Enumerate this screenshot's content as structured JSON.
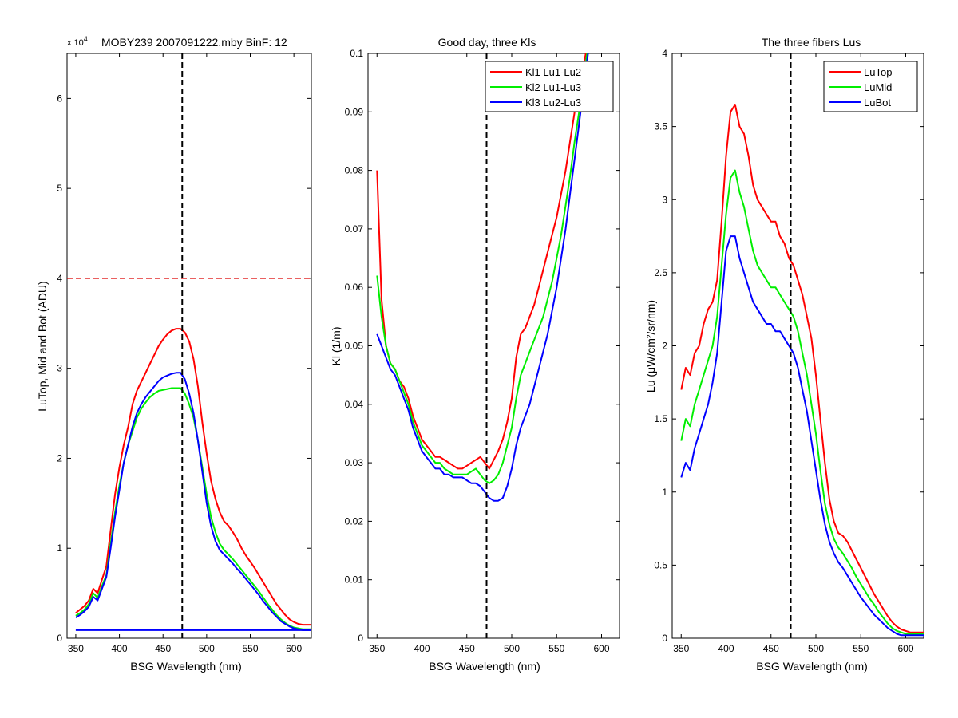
{
  "figure": {
    "panel1": {
      "title": "MOBY239  2007091222.mby BinF: 12",
      "exponent_base": "x 10",
      "exponent_power": "4"
    },
    "panel2": {
      "title": "Good day, three Kls"
    },
    "panel3": {
      "title": "The three fibers Lus"
    }
  },
  "colors": {
    "red": "#ff0000",
    "green": "#00ee00",
    "blue": "#0000ff",
    "marker": "#000000",
    "threshold": "#dd0000"
  },
  "chart_data": [
    {
      "type": "line",
      "title": "MOBY239  2007091222.mby BinF: 12",
      "xlabel": "BSG Wavelength (nm)",
      "ylabel": "LuTop, Mid and Bot (ADU)",
      "y_multiplier": "x 10^4",
      "xlim": [
        340,
        620
      ],
      "ylim": [
        0,
        6.5
      ],
      "xticks": [
        350,
        400,
        450,
        500,
        550,
        600
      ],
      "yticks": [
        0,
        1,
        2,
        3,
        4,
        5,
        6
      ],
      "grid": false,
      "legend": null,
      "reference_lines": {
        "vertical_x": 472,
        "horizontal_y": 4.0
      },
      "x": [
        350,
        355,
        360,
        365,
        370,
        375,
        380,
        385,
        390,
        395,
        400,
        405,
        410,
        415,
        420,
        425,
        430,
        435,
        440,
        445,
        450,
        455,
        460,
        465,
        470,
        475,
        480,
        485,
        490,
        495,
        500,
        505,
        510,
        515,
        520,
        525,
        530,
        535,
        540,
        545,
        550,
        555,
        560,
        565,
        570,
        575,
        580,
        585,
        590,
        595,
        600,
        605,
        610,
        615,
        620
      ],
      "series": [
        {
          "name": "",
          "color": "red",
          "values": [
            0.28,
            0.32,
            0.36,
            0.42,
            0.55,
            0.5,
            0.65,
            0.8,
            1.2,
            1.6,
            1.9,
            2.15,
            2.35,
            2.6,
            2.75,
            2.85,
            2.95,
            3.05,
            3.15,
            3.25,
            3.32,
            3.38,
            3.42,
            3.44,
            3.44,
            3.4,
            3.3,
            3.1,
            2.8,
            2.4,
            2.05,
            1.75,
            1.55,
            1.4,
            1.3,
            1.25,
            1.18,
            1.1,
            1.0,
            0.92,
            0.85,
            0.78,
            0.7,
            0.62,
            0.54,
            0.46,
            0.38,
            0.32,
            0.26,
            0.21,
            0.18,
            0.16,
            0.15,
            0.15,
            0.15
          ]
        },
        {
          "name": "",
          "color": "green",
          "values": [
            0.25,
            0.28,
            0.32,
            0.38,
            0.5,
            0.45,
            0.58,
            0.7,
            1.05,
            1.4,
            1.7,
            1.95,
            2.15,
            2.3,
            2.45,
            2.55,
            2.62,
            2.68,
            2.72,
            2.75,
            2.76,
            2.77,
            2.78,
            2.78,
            2.78,
            2.72,
            2.6,
            2.45,
            2.2,
            1.9,
            1.6,
            1.35,
            1.18,
            1.05,
            0.98,
            0.93,
            0.88,
            0.82,
            0.76,
            0.7,
            0.64,
            0.58,
            0.52,
            0.45,
            0.38,
            0.32,
            0.26,
            0.21,
            0.17,
            0.14,
            0.12,
            0.11,
            0.1,
            0.1,
            0.1
          ]
        },
        {
          "name": "",
          "color": "blue",
          "values": [
            0.23,
            0.26,
            0.3,
            0.35,
            0.46,
            0.42,
            0.55,
            0.68,
            1.0,
            1.35,
            1.65,
            1.95,
            2.15,
            2.35,
            2.5,
            2.6,
            2.68,
            2.74,
            2.8,
            2.86,
            2.9,
            2.92,
            2.94,
            2.95,
            2.95,
            2.88,
            2.72,
            2.5,
            2.2,
            1.85,
            1.5,
            1.25,
            1.08,
            0.98,
            0.93,
            0.88,
            0.83,
            0.77,
            0.72,
            0.66,
            0.6,
            0.54,
            0.48,
            0.41,
            0.35,
            0.29,
            0.24,
            0.19,
            0.16,
            0.13,
            0.11,
            0.1,
            0.09,
            0.09,
            0.09
          ]
        },
        {
          "name": "",
          "color": "blue",
          "values": [
            0.09,
            0.09,
            0.09,
            0.09,
            0.09,
            0.09,
            0.09,
            0.09,
            0.09,
            0.09,
            0.09,
            0.09,
            0.09,
            0.09,
            0.09,
            0.09,
            0.09,
            0.09,
            0.09,
            0.09,
            0.09,
            0.09,
            0.09,
            0.09,
            0.09,
            0.09,
            0.09,
            0.09,
            0.09,
            0.09,
            0.09,
            0.09,
            0.09,
            0.09,
            0.09,
            0.09,
            0.09,
            0.09,
            0.09,
            0.09,
            0.09,
            0.09,
            0.09,
            0.09,
            0.09,
            0.09,
            0.09,
            0.09,
            0.09,
            0.09,
            0.09,
            0.09,
            0.09,
            0.09,
            0.09
          ]
        }
      ]
    },
    {
      "type": "line",
      "title": "Good day, three Kls",
      "xlabel": "BSG Wavelength (nm)",
      "ylabel": "Kl (1/m)",
      "xlim": [
        340,
        620
      ],
      "ylim": [
        0,
        0.1
      ],
      "xticks": [
        350,
        400,
        450,
        500,
        550,
        600
      ],
      "yticks": [
        0,
        0.01,
        0.02,
        0.03,
        0.04,
        0.05,
        0.06,
        0.07,
        0.08,
        0.09,
        0.1
      ],
      "grid": false,
      "legend": "top-right",
      "reference_lines": {
        "vertical_x": 472
      },
      "x": [
        350,
        355,
        360,
        365,
        370,
        375,
        380,
        385,
        390,
        395,
        400,
        405,
        410,
        415,
        420,
        425,
        430,
        435,
        440,
        445,
        450,
        455,
        460,
        465,
        470,
        475,
        480,
        485,
        490,
        495,
        500,
        505,
        510,
        515,
        520,
        525,
        530,
        535,
        540,
        545,
        550,
        555,
        560,
        565,
        570,
        575,
        580,
        585
      ],
      "series": [
        {
          "name": "Kl1 Lu1-Lu2",
          "color": "red",
          "values": [
            0.08,
            0.058,
            0.05,
            0.047,
            0.046,
            0.044,
            0.043,
            0.041,
            0.038,
            0.036,
            0.034,
            0.033,
            0.032,
            0.031,
            0.031,
            0.0305,
            0.03,
            0.0295,
            0.029,
            0.029,
            0.0295,
            0.03,
            0.0305,
            0.031,
            0.03,
            0.029,
            0.0305,
            0.032,
            0.034,
            0.037,
            0.041,
            0.048,
            0.052,
            0.053,
            0.055,
            0.057,
            0.06,
            0.063,
            0.066,
            0.069,
            0.072,
            0.076,
            0.08,
            0.085,
            0.09,
            0.094,
            0.098,
            0.102
          ]
        },
        {
          "name": "Kl2 Lu1-Lu3",
          "color": "green",
          "values": [
            0.062,
            0.055,
            0.05,
            0.047,
            0.046,
            0.044,
            0.042,
            0.04,
            0.037,
            0.035,
            0.033,
            0.032,
            0.031,
            0.03,
            0.03,
            0.029,
            0.0285,
            0.028,
            0.028,
            0.028,
            0.028,
            0.0285,
            0.029,
            0.028,
            0.027,
            0.0265,
            0.027,
            0.028,
            0.03,
            0.033,
            0.036,
            0.041,
            0.045,
            0.047,
            0.049,
            0.051,
            0.053,
            0.055,
            0.058,
            0.061,
            0.065,
            0.069,
            0.074,
            0.079,
            0.085,
            0.09,
            0.096,
            0.101
          ]
        },
        {
          "name": "Kl3 Lu2-Lu3",
          "color": "blue",
          "values": [
            0.052,
            0.05,
            0.048,
            0.046,
            0.045,
            0.043,
            0.041,
            0.039,
            0.036,
            0.034,
            0.032,
            0.031,
            0.03,
            0.029,
            0.029,
            0.028,
            0.028,
            0.0275,
            0.0275,
            0.0275,
            0.027,
            0.0265,
            0.0265,
            0.026,
            0.025,
            0.024,
            0.0235,
            0.0235,
            0.024,
            0.026,
            0.029,
            0.033,
            0.036,
            0.038,
            0.04,
            0.043,
            0.046,
            0.049,
            0.052,
            0.056,
            0.06,
            0.065,
            0.07,
            0.076,
            0.082,
            0.088,
            0.094,
            0.1
          ]
        }
      ]
    },
    {
      "type": "line",
      "title": "The three fibers Lus",
      "xlabel": "BSG Wavelength (nm)",
      "ylabel": "Lu (μW/cm²/sr/nm)",
      "xlim": [
        340,
        620
      ],
      "ylim": [
        0,
        4
      ],
      "xticks": [
        350,
        400,
        450,
        500,
        550,
        600
      ],
      "yticks": [
        0,
        0.5,
        1,
        1.5,
        2,
        2.5,
        3,
        3.5,
        4
      ],
      "grid": false,
      "legend": "top-right",
      "reference_lines": {
        "vertical_x": 472
      },
      "x": [
        350,
        355,
        360,
        365,
        370,
        375,
        380,
        385,
        390,
        395,
        400,
        405,
        410,
        415,
        420,
        425,
        430,
        435,
        440,
        445,
        450,
        455,
        460,
        465,
        470,
        475,
        480,
        485,
        490,
        495,
        500,
        505,
        510,
        515,
        520,
        525,
        530,
        535,
        540,
        545,
        550,
        555,
        560,
        565,
        570,
        575,
        580,
        585,
        590,
        595,
        600,
        605,
        610,
        615,
        620
      ],
      "series": [
        {
          "name": "LuTop",
          "color": "red",
          "values": [
            1.7,
            1.85,
            1.8,
            1.95,
            2.0,
            2.15,
            2.25,
            2.3,
            2.45,
            2.85,
            3.3,
            3.6,
            3.65,
            3.5,
            3.45,
            3.3,
            3.1,
            3.0,
            2.95,
            2.9,
            2.85,
            2.85,
            2.75,
            2.7,
            2.6,
            2.55,
            2.45,
            2.35,
            2.2,
            2.05,
            1.8,
            1.5,
            1.2,
            0.95,
            0.8,
            0.72,
            0.7,
            0.66,
            0.6,
            0.54,
            0.48,
            0.42,
            0.36,
            0.3,
            0.25,
            0.2,
            0.15,
            0.11,
            0.08,
            0.06,
            0.05,
            0.04,
            0.04,
            0.04,
            0.04
          ]
        },
        {
          "name": "LuMid",
          "color": "green",
          "values": [
            1.35,
            1.5,
            1.45,
            1.6,
            1.7,
            1.8,
            1.9,
            2.0,
            2.2,
            2.55,
            2.9,
            3.15,
            3.2,
            3.05,
            2.95,
            2.8,
            2.65,
            2.55,
            2.5,
            2.45,
            2.4,
            2.4,
            2.35,
            2.3,
            2.25,
            2.2,
            2.1,
            1.95,
            1.8,
            1.6,
            1.4,
            1.15,
            0.92,
            0.78,
            0.68,
            0.62,
            0.58,
            0.53,
            0.48,
            0.42,
            0.37,
            0.32,
            0.27,
            0.23,
            0.18,
            0.14,
            0.1,
            0.07,
            0.05,
            0.04,
            0.03,
            0.03,
            0.03,
            0.03,
            0.03
          ]
        },
        {
          "name": "LuBot",
          "color": "blue",
          "values": [
            1.1,
            1.2,
            1.15,
            1.3,
            1.4,
            1.5,
            1.6,
            1.75,
            1.95,
            2.3,
            2.65,
            2.75,
            2.75,
            2.6,
            2.5,
            2.4,
            2.3,
            2.25,
            2.2,
            2.15,
            2.15,
            2.1,
            2.1,
            2.05,
            2.0,
            1.95,
            1.85,
            1.7,
            1.55,
            1.35,
            1.15,
            0.95,
            0.78,
            0.66,
            0.58,
            0.52,
            0.48,
            0.43,
            0.38,
            0.33,
            0.28,
            0.24,
            0.2,
            0.16,
            0.13,
            0.1,
            0.07,
            0.05,
            0.03,
            0.02,
            0.02,
            0.02,
            0.02,
            0.02,
            0.02
          ]
        }
      ]
    }
  ]
}
